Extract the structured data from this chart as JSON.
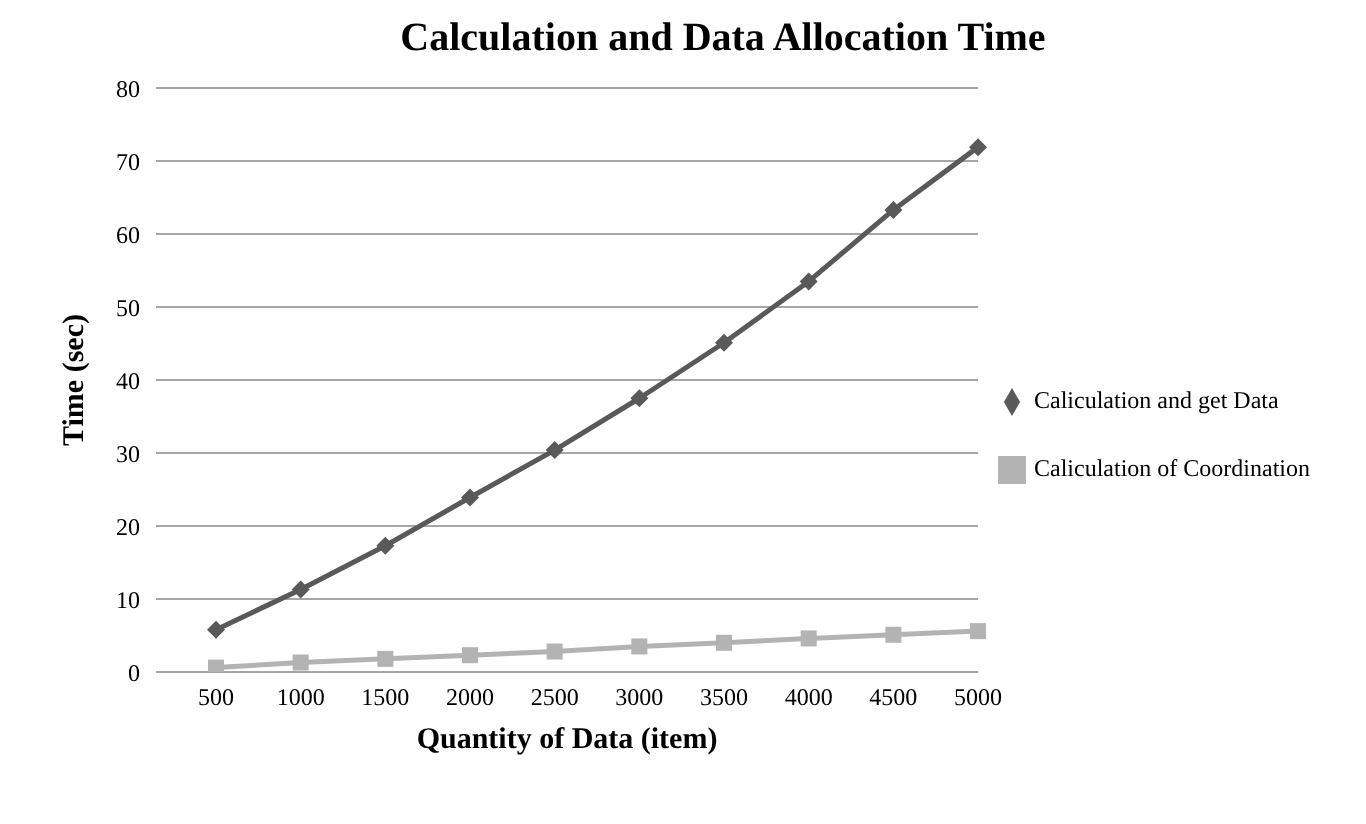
{
  "chart_data": {
    "type": "line",
    "title": "Calculation and Data Allocation Time",
    "xlabel": "Quantity of Data (item)",
    "ylabel": "Time (sec)",
    "categories": [
      "500",
      "1000",
      "1500",
      "2000",
      "2500",
      "3000",
      "3500",
      "4000",
      "4500",
      "5000"
    ],
    "series": [
      {
        "name": "Caliculation and get Data",
        "color": "#595959",
        "marker": "diamond",
        "values": [
          5.8,
          11.3,
          17.3,
          23.9,
          30.4,
          37.5,
          45.1,
          53.5,
          63.3,
          71.9
        ]
      },
      {
        "name": "Caliculation of Coordination",
        "color": "#b3b3b3",
        "marker": "square",
        "values": [
          0.6,
          1.3,
          1.8,
          2.3,
          2.8,
          3.5,
          4.0,
          4.6,
          5.1,
          5.6
        ]
      }
    ],
    "ylim": [
      0,
      80
    ],
    "yticks": [
      0,
      10,
      20,
      30,
      40,
      50,
      60,
      70,
      80
    ],
    "grid": "y",
    "legend": "right",
    "line_style": "solid"
  }
}
